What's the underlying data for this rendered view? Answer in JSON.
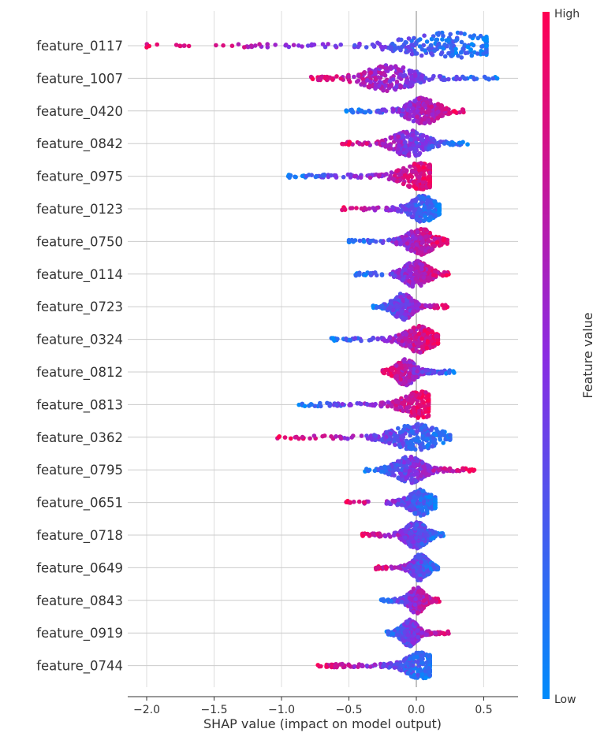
{
  "chart_data": {
    "type": "scatter",
    "subtype": "shap-beeswarm",
    "xlabel": "SHAP value (impact on model output)",
    "xlim": [
      -2.15,
      0.75
    ],
    "xticks": [
      -2.0,
      -1.5,
      -1.0,
      -0.5,
      0.0,
      0.5
    ],
    "xtick_labels": [
      "−2.0",
      "−1.5",
      "−1.0",
      "−0.5",
      "0.0",
      "0.5"
    ],
    "grid": true,
    "colorbar": {
      "label": "Feature value",
      "high_label": "High",
      "low_label": "Low",
      "high_color": "#ff0052",
      "mid_color": "#8a2be2",
      "low_color": "#008bfb",
      "placement": "right"
    },
    "features": [
      {
        "name": "feature_0117",
        "min": -2.0,
        "max": 0.52,
        "peak": 0.25,
        "low_side": "right"
      },
      {
        "name": "feature_1007",
        "min": -0.78,
        "max": 0.6,
        "peak": -0.2,
        "low_side": "right"
      },
      {
        "name": "feature_0420",
        "min": -0.52,
        "max": 0.35,
        "peak": 0.05,
        "low_side": "left"
      },
      {
        "name": "feature_0842",
        "min": -0.55,
        "max": 0.38,
        "peak": -0.05,
        "low_side": "right"
      },
      {
        "name": "feature_0975",
        "min": -0.95,
        "max": 0.1,
        "peak": 0.03,
        "low_side": "left"
      },
      {
        "name": "feature_0123",
        "min": -0.55,
        "max": 0.17,
        "peak": 0.05,
        "low_side": "right"
      },
      {
        "name": "feature_0750",
        "min": -0.5,
        "max": 0.23,
        "peak": 0.03,
        "low_side": "left"
      },
      {
        "name": "feature_0114",
        "min": -0.45,
        "max": 0.24,
        "peak": 0.0,
        "low_side": "left"
      },
      {
        "name": "feature_0723",
        "min": -0.32,
        "max": 0.23,
        "peak": -0.1,
        "low_side": "left"
      },
      {
        "name": "feature_0324",
        "min": -0.63,
        "max": 0.16,
        "peak": 0.02,
        "low_side": "left"
      },
      {
        "name": "feature_0812",
        "min": -0.25,
        "max": 0.28,
        "peak": -0.08,
        "low_side": "right"
      },
      {
        "name": "feature_0813",
        "min": -0.87,
        "max": 0.09,
        "peak": 0.03,
        "low_side": "left"
      },
      {
        "name": "feature_0362",
        "min": -1.03,
        "max": 0.25,
        "peak": 0.0,
        "low_side": "right"
      },
      {
        "name": "feature_0795",
        "min": -0.38,
        "max": 0.43,
        "peak": -0.05,
        "low_side": "left"
      },
      {
        "name": "feature_0651",
        "min": -0.52,
        "max": 0.14,
        "peak": 0.03,
        "low_side": "right"
      },
      {
        "name": "feature_0718",
        "min": -0.4,
        "max": 0.2,
        "peak": 0.0,
        "low_side": "right"
      },
      {
        "name": "feature_0649",
        "min": -0.3,
        "max": 0.16,
        "peak": 0.03,
        "low_side": "right"
      },
      {
        "name": "feature_0843",
        "min": -0.26,
        "max": 0.17,
        "peak": 0.0,
        "low_side": "left"
      },
      {
        "name": "feature_0919",
        "min": -0.22,
        "max": 0.24,
        "peak": -0.05,
        "low_side": "left"
      },
      {
        "name": "feature_0744",
        "min": -0.73,
        "max": 0.1,
        "peak": 0.03,
        "low_side": "right"
      }
    ]
  }
}
